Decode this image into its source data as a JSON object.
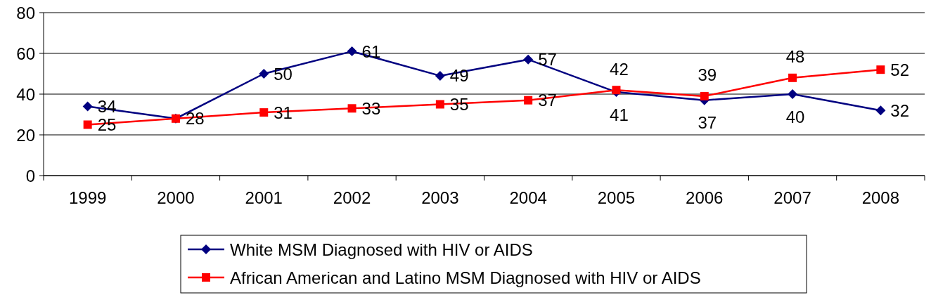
{
  "chart_data": {
    "type": "line",
    "categories": [
      "1999",
      "2000",
      "2001",
      "2002",
      "2003",
      "2004",
      "2005",
      "2006",
      "2007",
      "2008"
    ],
    "series": [
      {
        "name": "White MSM Diagnosed with HIV or AIDS",
        "color": "#000080",
        "marker": "diamond",
        "values": [
          34,
          28,
          50,
          61,
          49,
          57,
          41,
          37,
          40,
          32
        ],
        "value_labels": [
          "34",
          "28",
          "50",
          "61",
          "49",
          "57",
          "41",
          "37",
          "40",
          "32"
        ]
      },
      {
        "name": "African American and Latino MSM Diagnosed with HIV or AIDS",
        "color": "#ff0000",
        "marker": "square",
        "values": [
          25,
          28,
          31,
          33,
          35,
          37,
          42,
          39,
          48,
          52
        ],
        "value_labels": [
          "25",
          null,
          "31",
          "33",
          "35",
          "37",
          "42",
          "39",
          "48",
          "52"
        ]
      }
    ],
    "ylim": [
      0,
      80
    ],
    "yticks": [
      0,
      20,
      40,
      60,
      80
    ],
    "grid": "y",
    "legend": "bottom",
    "line_style": "solid"
  }
}
